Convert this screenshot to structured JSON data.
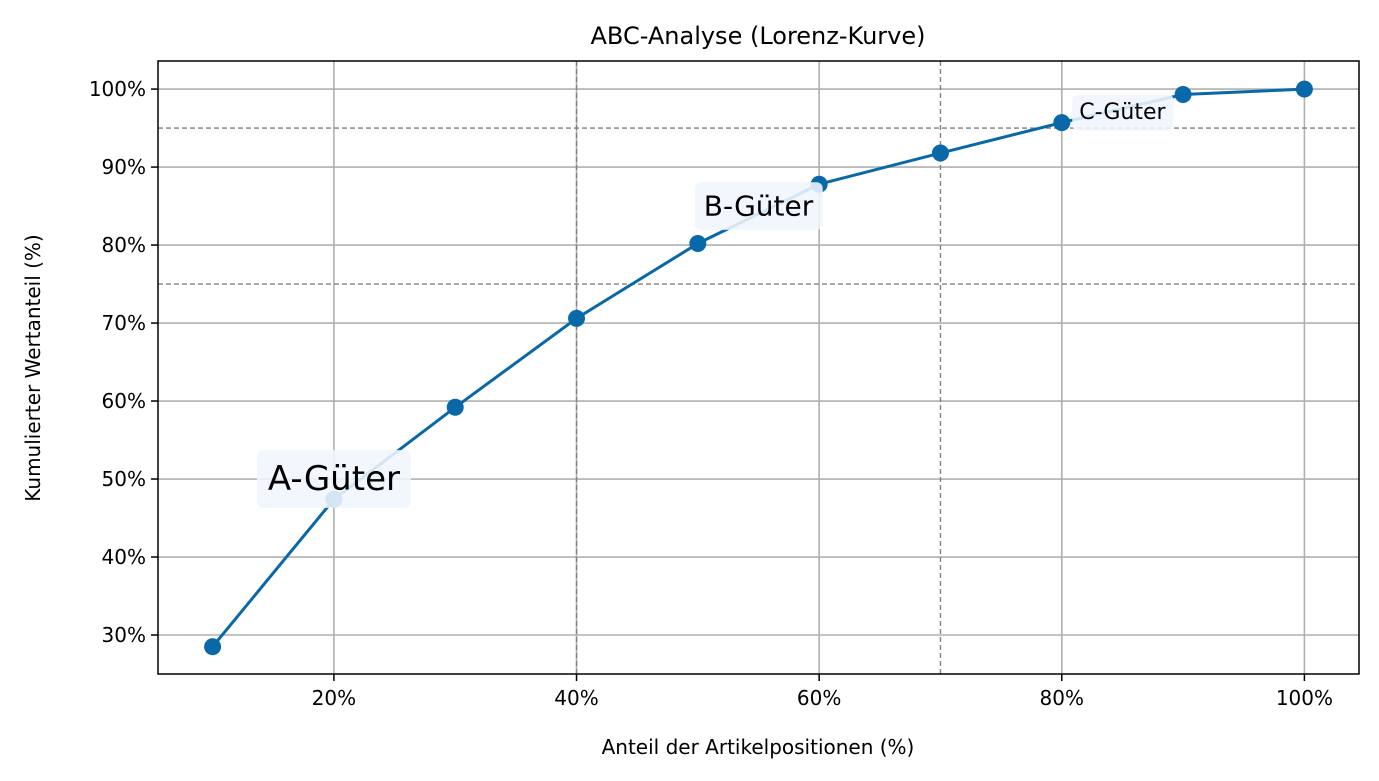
{
  "chart_data": {
    "type": "line",
    "title": "ABC-Analyse (Lorenz-Kurve)",
    "xlabel": "Anteil der Artikelpositionen (%)",
    "ylabel": "Kumulierter Wertanteil (%)",
    "xlim": [
      5.5,
      104.5
    ],
    "ylim": [
      25,
      103.6
    ],
    "x_ticks": [
      20,
      40,
      60,
      80,
      100
    ],
    "x_tick_labels": [
      "20%",
      "40%",
      "60%",
      "80%",
      "100%"
    ],
    "y_ticks": [
      30,
      40,
      50,
      60,
      70,
      80,
      90,
      100
    ],
    "y_tick_labels": [
      "30%",
      "40%",
      "50%",
      "60%",
      "70%",
      "80%",
      "90%",
      "100%"
    ],
    "grid": true,
    "series": [
      {
        "color": "#0868a8",
        "marker": "circle",
        "x": [
          10,
          20,
          30,
          40,
          50,
          60,
          70,
          80,
          90,
          100
        ],
        "y": [
          28.5,
          47.4,
          59.2,
          70.6,
          80.2,
          87.8,
          91.8,
          95.7,
          99.3,
          100
        ]
      }
    ],
    "reference_lines": {
      "horizontal": [
        75,
        95
      ],
      "vertical": [
        40,
        70
      ],
      "color": "#808080",
      "style": "dashed"
    },
    "annotations": [
      {
        "text": "A-Güter",
        "x": 20,
        "y": 50,
        "size": "large"
      },
      {
        "text": "B-Güter",
        "x": 55,
        "y": 85,
        "size": "medium"
      },
      {
        "text": "C-Güter",
        "x": 85,
        "y": 97,
        "size": "small"
      }
    ]
  }
}
